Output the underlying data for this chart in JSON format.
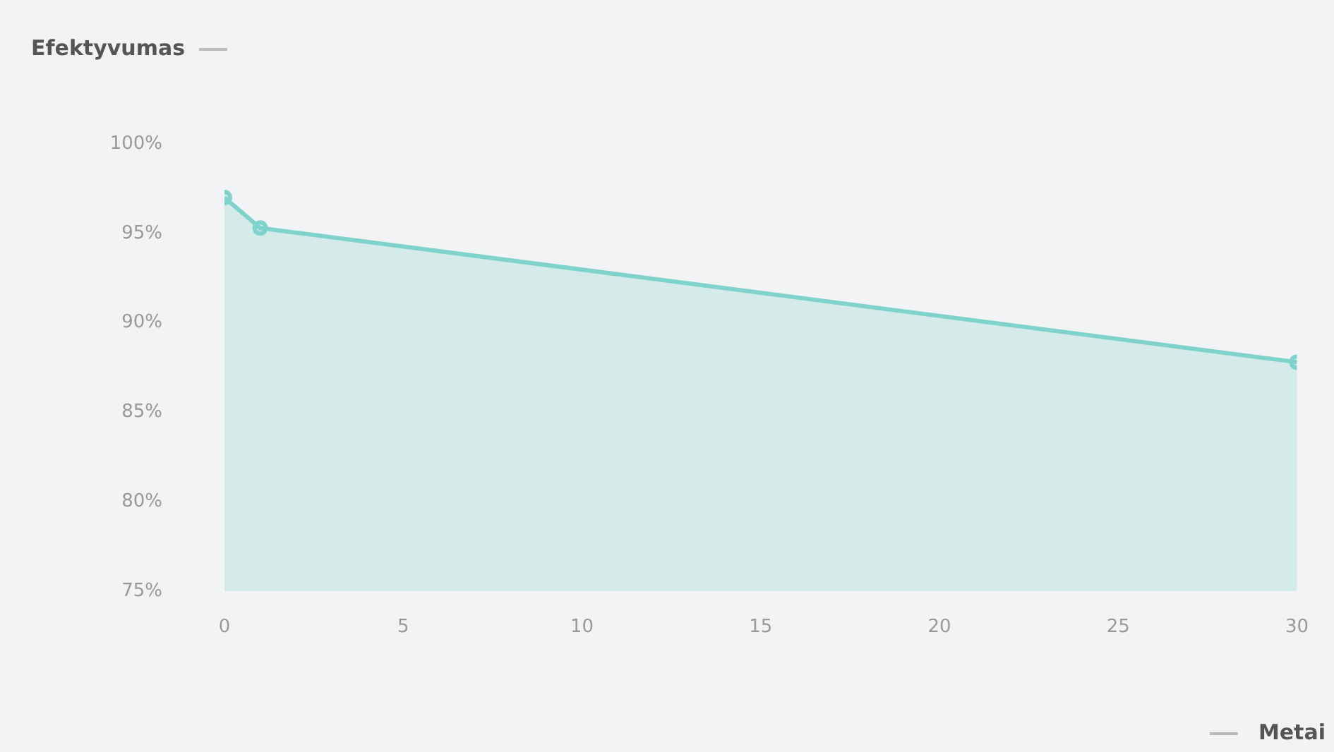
{
  "chart_data": {
    "type": "area",
    "xlabel": "Metai",
    "ylabel": "Efektyvumas",
    "x": [
      0,
      1,
      30
    ],
    "series": [
      {
        "color": "#7fd3cc",
        "values": [
          97,
          95.3,
          87.8
        ]
      }
    ],
    "xlim": [
      0,
      30
    ],
    "xticks": [
      0,
      5,
      10,
      15,
      20,
      25,
      30
    ],
    "ylim": [
      75,
      100
    ],
    "yticks": [
      {
        "value": 75,
        "label": "75%"
      },
      {
        "value": 80,
        "label": "80%"
      },
      {
        "value": 85,
        "label": "85%"
      },
      {
        "value": 90,
        "label": "90%"
      },
      {
        "value": 95,
        "label": "95%"
      },
      {
        "value": 100,
        "label": "100%"
      }
    ],
    "grid": false,
    "legend": false,
    "marker": "circle"
  }
}
